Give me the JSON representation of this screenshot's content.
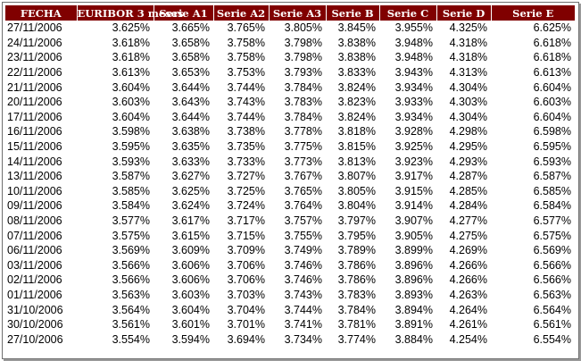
{
  "headers": [
    "FECHA",
    "EURIBOR 3 meses",
    "Serie A1",
    "Serie A2",
    "Serie A3",
    "Serie B",
    "Serie C",
    "Serie D",
    "Serie E"
  ],
  "rows": [
    [
      "27/11/2006",
      "3.625%",
      "3.665%",
      "3.765%",
      "3.805%",
      "3.845%",
      "3.955%",
      "4.325%",
      "6.625%"
    ],
    [
      "24/11/2006",
      "3.618%",
      "3.658%",
      "3.758%",
      "3.798%",
      "3.838%",
      "3.948%",
      "4.318%",
      "6.618%"
    ],
    [
      "23/11/2006",
      "3.618%",
      "3.658%",
      "3.758%",
      "3.798%",
      "3.838%",
      "3.948%",
      "4.318%",
      "6.618%"
    ],
    [
      "22/11/2006",
      "3.613%",
      "3.653%",
      "3.753%",
      "3.793%",
      "3.833%",
      "3.943%",
      "4.313%",
      "6.613%"
    ],
    [
      "21/11/2006",
      "3.604%",
      "3.644%",
      "3.744%",
      "3.784%",
      "3.824%",
      "3.934%",
      "4.304%",
      "6.604%"
    ],
    [
      "20/11/2006",
      "3.603%",
      "3.643%",
      "3.743%",
      "3.783%",
      "3.823%",
      "3.933%",
      "4.303%",
      "6.603%"
    ],
    [
      "17/11/2006",
      "3.604%",
      "3.644%",
      "3.744%",
      "3.784%",
      "3.824%",
      "3.934%",
      "4.304%",
      "6.604%"
    ],
    [
      "16/11/2006",
      "3.598%",
      "3.638%",
      "3.738%",
      "3.778%",
      "3.818%",
      "3.928%",
      "4.298%",
      "6.598%"
    ],
    [
      "15/11/2006",
      "3.595%",
      "3.635%",
      "3.735%",
      "3.775%",
      "3.815%",
      "3.925%",
      "4.295%",
      "6.595%"
    ],
    [
      "14/11/2006",
      "3.593%",
      "3.633%",
      "3.733%",
      "3.773%",
      "3.813%",
      "3.923%",
      "4.293%",
      "6.593%"
    ],
    [
      "13/11/2006",
      "3.587%",
      "3.627%",
      "3.727%",
      "3.767%",
      "3.807%",
      "3.917%",
      "4.287%",
      "6.587%"
    ],
    [
      "10/11/2006",
      "3.585%",
      "3.625%",
      "3.725%",
      "3.765%",
      "3.805%",
      "3.915%",
      "4.285%",
      "6.585%"
    ],
    [
      "09/11/2006",
      "3.584%",
      "3.624%",
      "3.724%",
      "3.764%",
      "3.804%",
      "3.914%",
      "4.284%",
      "6.584%"
    ],
    [
      "08/11/2006",
      "3.577%",
      "3.617%",
      "3.717%",
      "3.757%",
      "3.797%",
      "3.907%",
      "4.277%",
      "6.577%"
    ],
    [
      "07/11/2006",
      "3.575%",
      "3.615%",
      "3.715%",
      "3.755%",
      "3.795%",
      "3.905%",
      "4.275%",
      "6.575%"
    ],
    [
      "06/11/2006",
      "3.569%",
      "3.609%",
      "3.709%",
      "3.749%",
      "3.789%",
      "3.899%",
      "4.269%",
      "6.569%"
    ],
    [
      "03/11/2006",
      "3.566%",
      "3.606%",
      "3.706%",
      "3.746%",
      "3.786%",
      "3.896%",
      "4.266%",
      "6.566%"
    ],
    [
      "02/11/2006",
      "3.566%",
      "3.606%",
      "3.706%",
      "3.746%",
      "3.786%",
      "3.896%",
      "4.266%",
      "6.566%"
    ],
    [
      "01/11/2006",
      "3.563%",
      "3.603%",
      "3.703%",
      "3.743%",
      "3.783%",
      "3.893%",
      "4.263%",
      "6.563%"
    ],
    [
      "31/10/2006",
      "3.564%",
      "3.604%",
      "3.704%",
      "3.744%",
      "3.784%",
      "3.894%",
      "4.264%",
      "6.564%"
    ],
    [
      "30/10/2006",
      "3.561%",
      "3.601%",
      "3.701%",
      "3.741%",
      "3.781%",
      "3.891%",
      "4.261%",
      "6.561%"
    ],
    [
      "27/10/2006",
      "3.554%",
      "3.594%",
      "3.694%",
      "3.734%",
      "3.774%",
      "3.884%",
      "4.254%",
      "6.554%"
    ]
  ],
  "colors": {
    "header_bg": "#800000",
    "header_text": "#ffffff",
    "border": "#6f6f6f"
  }
}
